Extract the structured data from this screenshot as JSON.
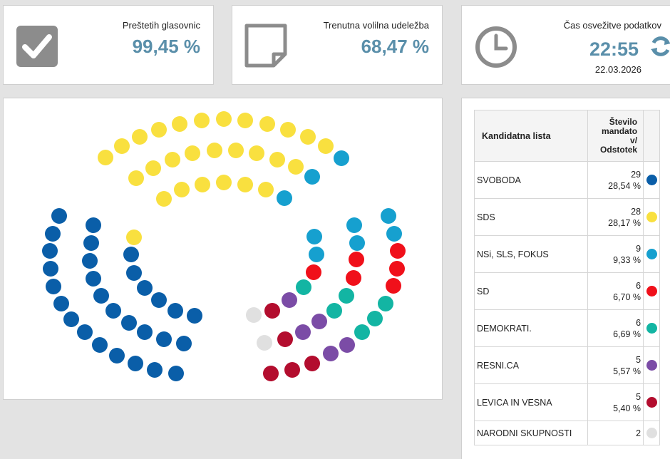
{
  "cards": {
    "ballots": {
      "label": "Preštetih glasovnic",
      "value": "99,45 %"
    },
    "turnout": {
      "label": "Trenutna volilna udeležba",
      "value": "68,47 %"
    },
    "refresh": {
      "label": "Čas osvežitve podatkov",
      "time": "22:55",
      "date": "22.03.2026"
    }
  },
  "table": {
    "header": {
      "list": "Kandidatna lista",
      "seats": [
        "Število",
        "mandato",
        "v/",
        "Odstotek"
      ]
    },
    "rows": [
      {
        "name": "SVOBODA",
        "seats": "29",
        "percent": "28,54 %",
        "color": "#0a5ea8"
      },
      {
        "name": "SDS",
        "seats": "28",
        "percent": "28,17 %",
        "color": "#f9e03f"
      },
      {
        "name": "NSi, SLS, FOKUS",
        "seats": "9",
        "percent": "9,33 %",
        "color": "#16a0cf"
      },
      {
        "name": "SD",
        "seats": "6",
        "percent": "6,70 %",
        "color": "#f0101a"
      },
      {
        "name": "DEMOKRATI.",
        "seats": "6",
        "percent": "6,69 %",
        "color": "#13b5a3"
      },
      {
        "name": "RESNI.CA",
        "seats": "5",
        "percent": "5,57 %",
        "color": "#7b4ca6"
      },
      {
        "name": "LEVICA IN VESNA",
        "seats": "5",
        "percent": "5,40 %",
        "color": "#b30d2e"
      },
      {
        "name": "NARODNI SKUPNOSTI",
        "seats": "2",
        "percent": "",
        "color": "#e0e0e0"
      }
    ]
  }
}
